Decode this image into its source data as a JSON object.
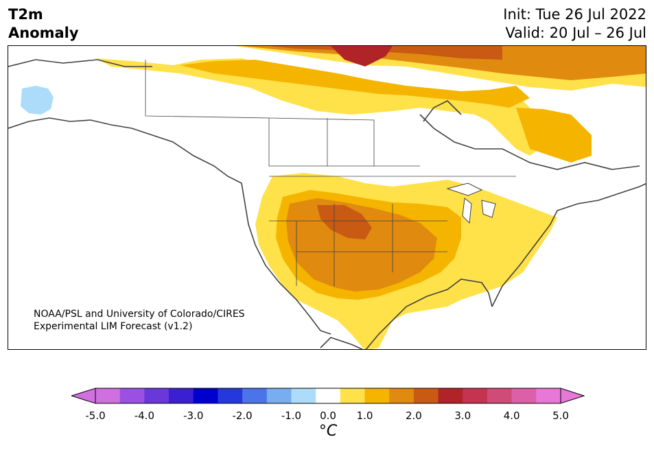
{
  "header": {
    "title_line1": "T2m",
    "title_line2": "Anomaly",
    "init": "Init: Tue 26 Jul 2022",
    "valid": "Valid: 20 Jul – 26 Jul"
  },
  "credit": {
    "line1": "NOAA/PSL and University of Colorado/CIRES",
    "line2": "Experimental LIM Forecast (v1.2)"
  },
  "colorbar": {
    "units": "°C",
    "tick_labels": [
      "-5.0",
      "-4.0",
      "-3.0",
      "-2.0",
      "-1.0",
      "0.0",
      "1.0",
      "2.0",
      "3.0",
      "4.0",
      "5.0"
    ],
    "levels": [
      -5.0,
      -4.5,
      -4.0,
      -3.5,
      -3.0,
      -2.5,
      -2.0,
      -1.5,
      -1.0,
      -0.5,
      0.5,
      1.0,
      1.5,
      2.0,
      2.5,
      3.0,
      3.5,
      4.0,
      4.5,
      5.0
    ],
    "colors": [
      "#d070e0",
      "#9a50e0",
      "#6a38d8",
      "#3a20d0",
      "#0000cc",
      "#2438dc",
      "#4a74e8",
      "#78aef0",
      "#acdcfa",
      "#ffffff",
      "#ffe14a",
      "#f5b400",
      "#e08a10",
      "#c85a14",
      "#b02428",
      "#c43450",
      "#d04c78",
      "#dc60a8",
      "#e878d8"
    ],
    "extend_low_color": "#d070e0",
    "extend_high_color": "#e878d8"
  },
  "map": {
    "region": "North America",
    "projection": "lat-lon",
    "land_color": "#ffffff",
    "coastline_color": "#404040"
  }
}
